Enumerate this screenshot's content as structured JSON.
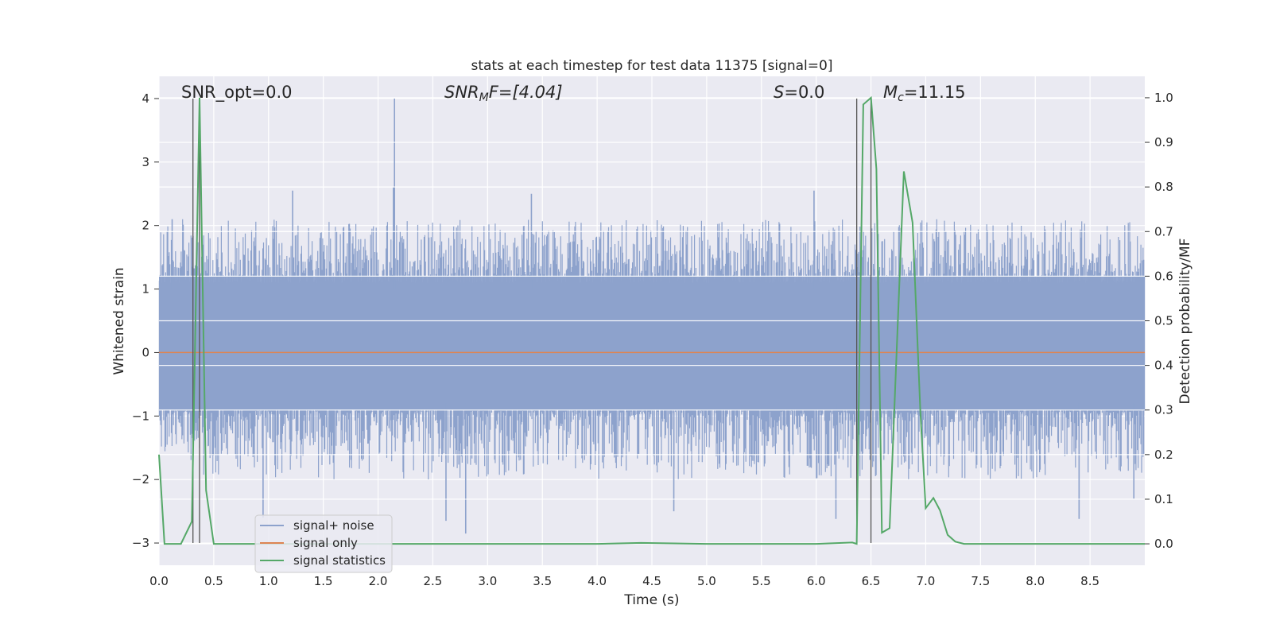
{
  "chart_data": {
    "type": "line",
    "title": "stats at each timestep for test data 11375 [signal=0]",
    "xlabel": "Time (s)",
    "ylabel": "Whitened strain",
    "y2label": "Detection probability/MF",
    "xlim": [
      0.0,
      9.0
    ],
    "ylim": [
      -3.35,
      4.35
    ],
    "y2lim": [
      -0.048,
      1.048
    ],
    "xticks": [
      "0.0",
      "0.5",
      "1.0",
      "1.5",
      "2.0",
      "2.5",
      "3.0",
      "3.5",
      "4.0",
      "4.5",
      "5.0",
      "5.5",
      "6.0",
      "6.5",
      "7.0",
      "7.5",
      "8.0",
      "8.5"
    ],
    "yticks": [
      "−3",
      "−2",
      "−1",
      "0",
      "1",
      "2",
      "3",
      "4"
    ],
    "y2ticks": [
      "0.0",
      "0.1",
      "0.2",
      "0.3",
      "0.4",
      "0.5",
      "0.6",
      "0.7",
      "0.8",
      "0.9",
      "1.0"
    ],
    "grid": true,
    "legend_position": "lower-left",
    "annotations": {
      "snr_opt": "SNR_opt=0.0",
      "snr_mf_base": "SNR",
      "snr_mf_sub": "M",
      "snr_mf_rest": "F=[4.04]",
      "s_sym": "S",
      "s_rest": "=0.0",
      "mc_base": "M",
      "mc_sub": "c",
      "mc_rest": "=11.15"
    },
    "vertical_markers_x": [
      0.31,
      0.37,
      6.37,
      6.5
    ],
    "series": [
      {
        "name": "signal+ noise",
        "color": "#8da2cc",
        "envelope_description": "dense noise between about -1.6 and 1.7 with spikes",
        "spikes": [
          {
            "x": 2.15,
            "y": 4.0
          },
          {
            "x": 1.22,
            "y": 2.55
          },
          {
            "x": 2.14,
            "y": 2.6
          },
          {
            "x": 3.4,
            "y": 2.5
          },
          {
            "x": 5.98,
            "y": 2.55
          },
          {
            "x": 2.8,
            "y": -2.85
          },
          {
            "x": 2.62,
            "y": -2.65
          },
          {
            "x": 6.18,
            "y": -2.62
          },
          {
            "x": 8.4,
            "y": -2.62
          },
          {
            "x": 0.95,
            "y": -2.6
          },
          {
            "x": 8.9,
            "y": -2.3
          },
          {
            "x": 4.7,
            "y": -2.5
          },
          {
            "x": 0.12,
            "y": 2.1
          }
        ]
      },
      {
        "name": "signal only",
        "color": "#dd8452",
        "x": [
          0.0,
          9.0
        ],
        "y": [
          0.0,
          0.0
        ]
      },
      {
        "name": "signal statistics",
        "color": "#55a868",
        "axis": "right",
        "x": [
          0.0,
          0.05,
          0.2,
          0.3,
          0.37,
          0.43,
          0.5,
          1.0,
          2.0,
          3.0,
          4.0,
          4.4,
          5.0,
          6.0,
          6.33,
          6.37,
          6.43,
          6.5,
          6.55,
          6.6,
          6.67,
          6.8,
          6.88,
          6.95,
          7.0,
          7.07,
          7.13,
          7.2,
          7.27,
          7.35,
          7.5,
          8.0,
          8.5,
          9.0
        ],
        "y": [
          0.2,
          0.0,
          0.0,
          0.05,
          1.0,
          0.12,
          0.0,
          0.0,
          0.0,
          0.0,
          0.0,
          0.002,
          0.0,
          0.0,
          0.003,
          0.0,
          0.985,
          1.0,
          0.84,
          0.025,
          0.035,
          0.835,
          0.72,
          0.3,
          0.08,
          0.103,
          0.075,
          0.02,
          0.005,
          0.0,
          0.0,
          0.0,
          0.0,
          0.0
        ]
      }
    ]
  }
}
